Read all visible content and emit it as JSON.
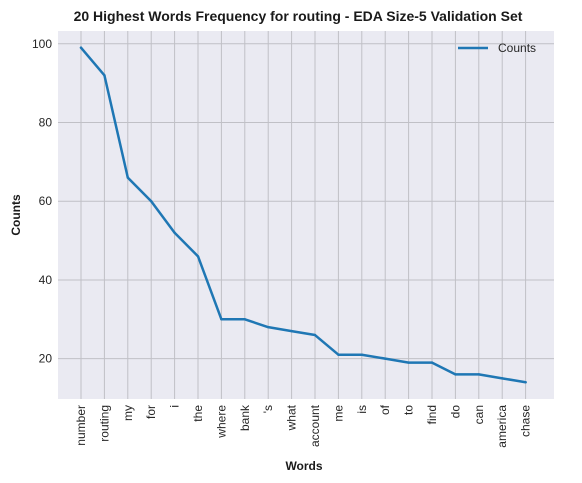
{
  "chart_data": {
    "type": "line",
    "title": "20 Highest Words Frequency for routing - EDA Size-5 Validation Set",
    "xlabel": "Words",
    "ylabel": "Counts",
    "categories": [
      "number",
      "routing",
      "my",
      "for",
      "i",
      "the",
      "where",
      "bank",
      "'s",
      "what",
      "account",
      "me",
      "is",
      "of",
      "to",
      "find",
      "do",
      "can",
      "america",
      "chase"
    ],
    "series": [
      {
        "name": "Counts",
        "values": [
          99,
          92,
          66,
          60,
          52,
          46,
          30,
          30,
          28,
          27,
          26,
          21,
          21,
          20,
          19,
          19,
          16,
          16,
          15,
          14
        ]
      }
    ],
    "ylim": [
      9.75,
      103.25
    ],
    "yticks": [
      20,
      40,
      60,
      80,
      100
    ],
    "grid": true,
    "legend": "top-right",
    "colors": {
      "line": "#1f77b4",
      "plot_bg": "#eaeaf2",
      "grid": "#c0c0c6"
    }
  }
}
